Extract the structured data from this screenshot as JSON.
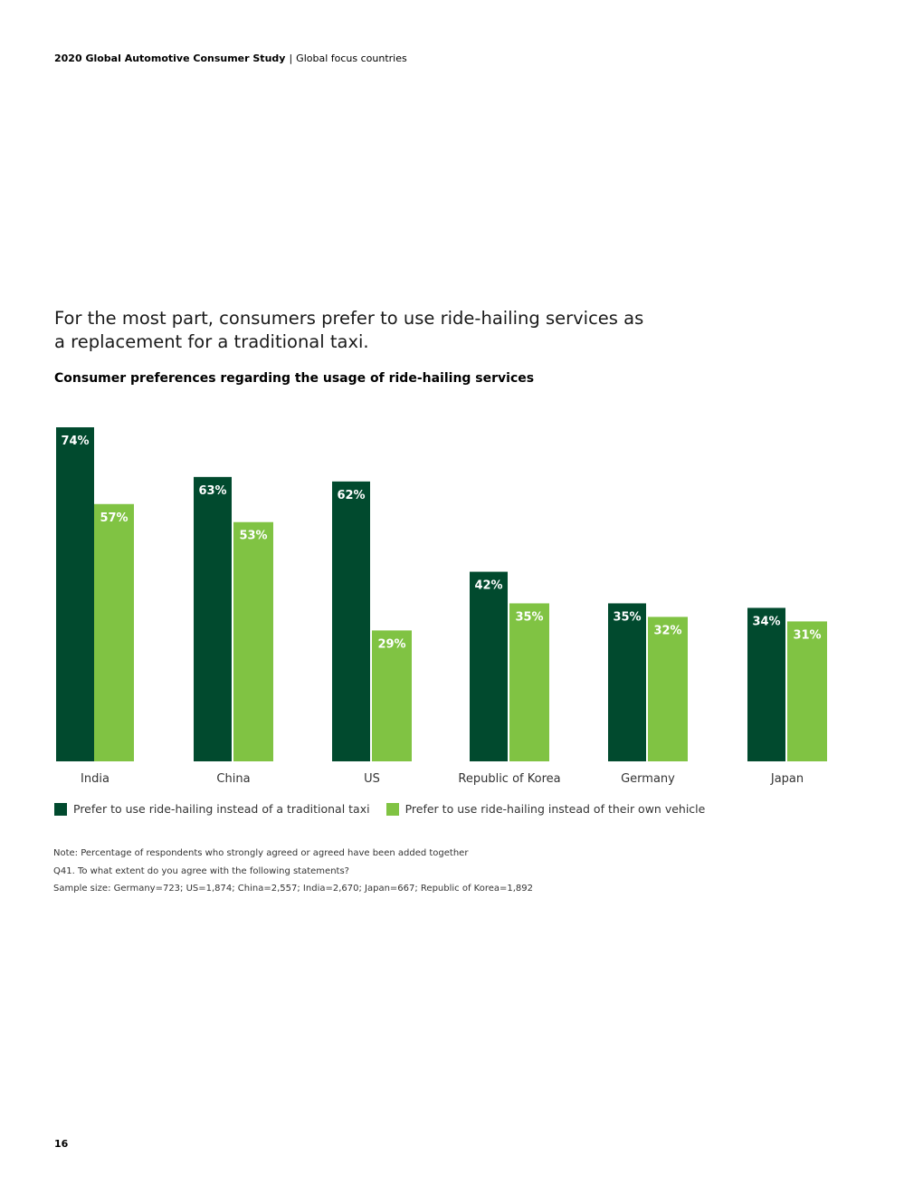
{
  "header": {
    "title": "2020 Global Automotive Consumer Study",
    "separator": "|",
    "subtitle": "Global focus countries"
  },
  "headline": "For the most part, consumers prefer to use ride-hailing services as a replacement for a traditional taxi.",
  "chart_data": {
    "type": "bar",
    "title": "Consumer preferences regarding the usage of ride-hailing services",
    "xlabel": "",
    "ylabel": "",
    "ylim": [
      0,
      74
    ],
    "grid": false,
    "legend_position": "bottom-left",
    "categories": [
      "India",
      "China",
      "US",
      "Republic of Korea",
      "Germany",
      "Japan"
    ],
    "series": [
      {
        "name": "Prefer to use ride-hailing instead of a traditional taxi",
        "values": [
          74,
          63,
          62,
          42,
          35,
          34
        ],
        "labels": [
          "74%",
          "63%",
          "62%",
          "42%",
          "35%",
          "34%"
        ],
        "color": "#014a2e"
      },
      {
        "name": "Prefer to use ride-hailing instead of their own vehicle",
        "values": [
          57,
          53,
          29,
          35,
          32,
          31
        ],
        "labels": [
          "57%",
          "53%",
          "29%",
          "35%",
          "32%",
          "31%"
        ],
        "color": "#80c343"
      }
    ]
  },
  "notes": [
    "Note: Percentage of respondents who strongly agreed or agreed have been added together",
    "Q41. To what extent do you agree with the following statements?",
    "Sample size: Germany=723; US=1,874; China=2,557; India=2,670; Japan=667; Republic of Korea=1,892"
  ],
  "page_number": "16"
}
